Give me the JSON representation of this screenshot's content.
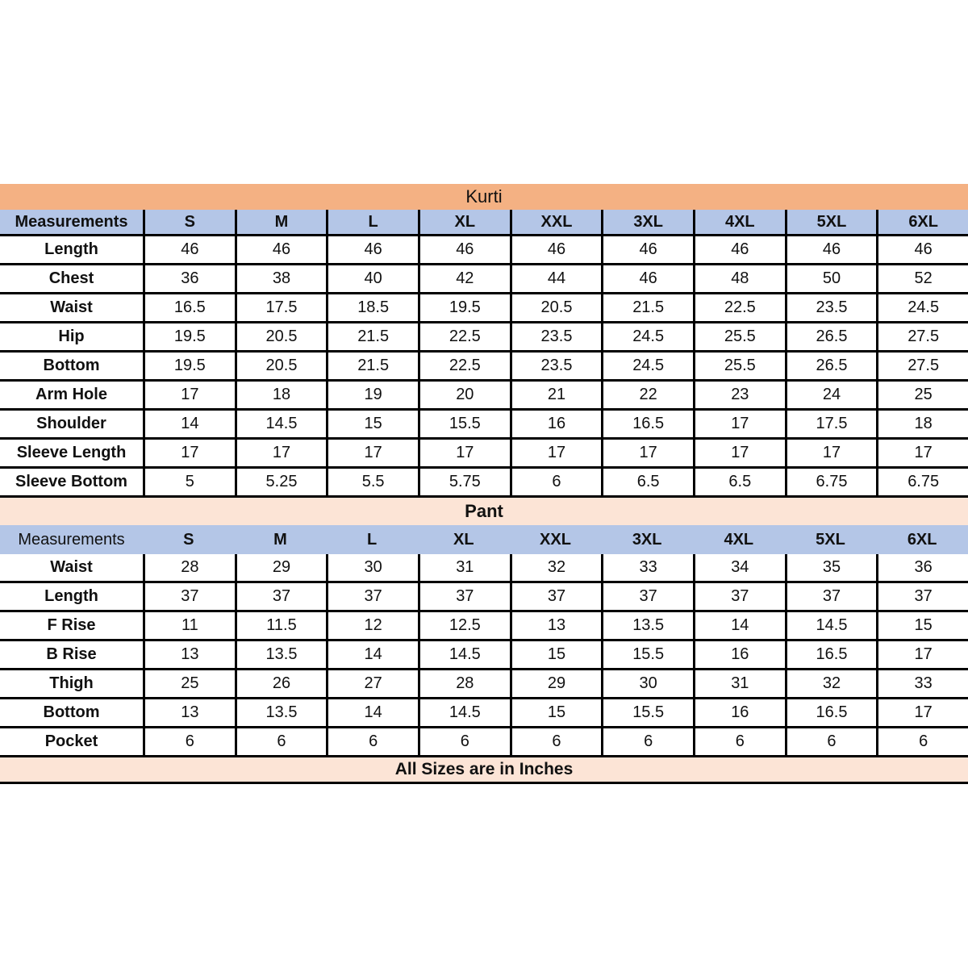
{
  "kurti": {
    "title": "Kurti",
    "header": [
      "Measurements",
      "S",
      "M",
      "L",
      "XL",
      "XXL",
      "3XL",
      "4XL",
      "5XL",
      "6XL"
    ],
    "rows": [
      {
        "label": "Length",
        "values": [
          "46",
          "46",
          "46",
          "46",
          "46",
          "46",
          "46",
          "46",
          "46"
        ]
      },
      {
        "label": "Chest",
        "values": [
          "36",
          "38",
          "40",
          "42",
          "44",
          "46",
          "48",
          "50",
          "52"
        ]
      },
      {
        "label": "Waist",
        "values": [
          "16.5",
          "17.5",
          "18.5",
          "19.5",
          "20.5",
          "21.5",
          "22.5",
          "23.5",
          "24.5"
        ]
      },
      {
        "label": "Hip",
        "values": [
          "19.5",
          "20.5",
          "21.5",
          "22.5",
          "23.5",
          "24.5",
          "25.5",
          "26.5",
          "27.5"
        ]
      },
      {
        "label": "Bottom",
        "values": [
          "19.5",
          "20.5",
          "21.5",
          "22.5",
          "23.5",
          "24.5",
          "25.5",
          "26.5",
          "27.5"
        ]
      },
      {
        "label": "Arm Hole",
        "values": [
          "17",
          "18",
          "19",
          "20",
          "21",
          "22",
          "23",
          "24",
          "25"
        ]
      },
      {
        "label": "Shoulder",
        "values": [
          "14",
          "14.5",
          "15",
          "15.5",
          "16",
          "16.5",
          "17",
          "17.5",
          "18"
        ]
      },
      {
        "label": "Sleeve Length",
        "values": [
          "17",
          "17",
          "17",
          "17",
          "17",
          "17",
          "17",
          "17",
          "17"
        ]
      },
      {
        "label": "Sleeve Bottom",
        "values": [
          "5",
          "5.25",
          "5.5",
          "5.75",
          "6",
          "6.5",
          "6.5",
          "6.75",
          "6.75"
        ]
      }
    ]
  },
  "pant": {
    "title": "Pant",
    "header": [
      "Measurements",
      "S",
      "M",
      "L",
      "XL",
      "XXL",
      "3XL",
      "4XL",
      "5XL",
      "6XL"
    ],
    "rows": [
      {
        "label": "Waist",
        "values": [
          "28",
          "29",
          "30",
          "31",
          "32",
          "33",
          "34",
          "35",
          "36"
        ]
      },
      {
        "label": "Length",
        "values": [
          "37",
          "37",
          "37",
          "37",
          "37",
          "37",
          "37",
          "37",
          "37"
        ]
      },
      {
        "label": "F Rise",
        "values": [
          "11",
          "11.5",
          "12",
          "12.5",
          "13",
          "13.5",
          "14",
          "14.5",
          "15"
        ]
      },
      {
        "label": "B Rise",
        "values": [
          "13",
          "13.5",
          "14",
          "14.5",
          "15",
          "15.5",
          "16",
          "16.5",
          "17"
        ]
      },
      {
        "label": "Thigh",
        "values": [
          "25",
          "26",
          "27",
          "28",
          "29",
          "30",
          "31",
          "32",
          "33"
        ]
      },
      {
        "label": "Bottom",
        "values": [
          "13",
          "13.5",
          "14",
          "14.5",
          "15",
          "15.5",
          "16",
          "16.5",
          "17"
        ]
      },
      {
        "label": "Pocket",
        "values": [
          "6",
          "6",
          "6",
          "6",
          "6",
          "6",
          "6",
          "6",
          "6"
        ]
      }
    ]
  },
  "footer": {
    "note": "All Sizes are in Inches"
  },
  "colors": {
    "kurti_band": "#F4B183",
    "pant_band": "#FCE4D6",
    "header_band": "#B4C6E7",
    "border": "#000000"
  }
}
